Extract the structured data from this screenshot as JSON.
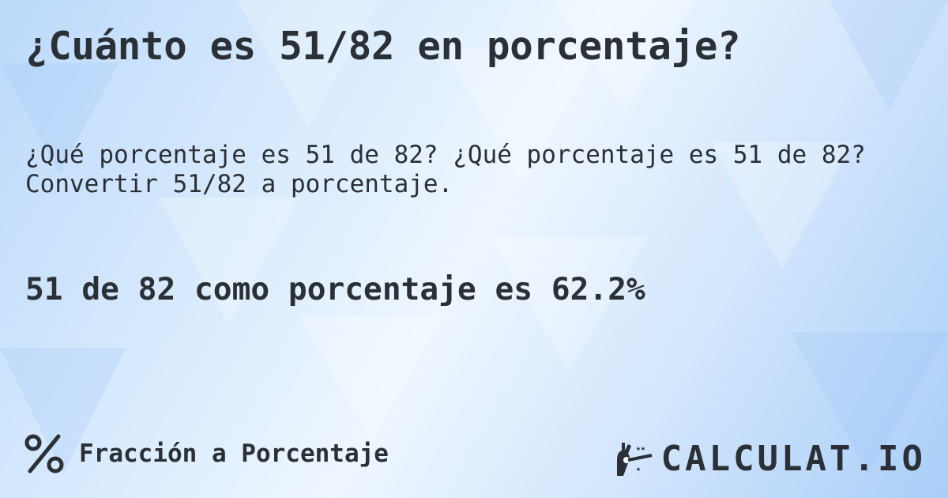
{
  "title": "¿Cuánto es 51/82 en porcentaje?",
  "description": "¿Qué porcentaje es 51 de 82? ¿Qué porcentaje es 51 de 82? Convertir 51/82 a porcentaje.",
  "result": "51 de 82 como porcentaje es 62.2%",
  "footer": {
    "icon": "percent-icon",
    "label": "Fracción a Porcentaje"
  },
  "logo": {
    "text": "CALCULAT.IO",
    "icon": "magic-hand-icon"
  },
  "colors": {
    "text": "#2b2f36",
    "background": "#cfe4fc"
  }
}
